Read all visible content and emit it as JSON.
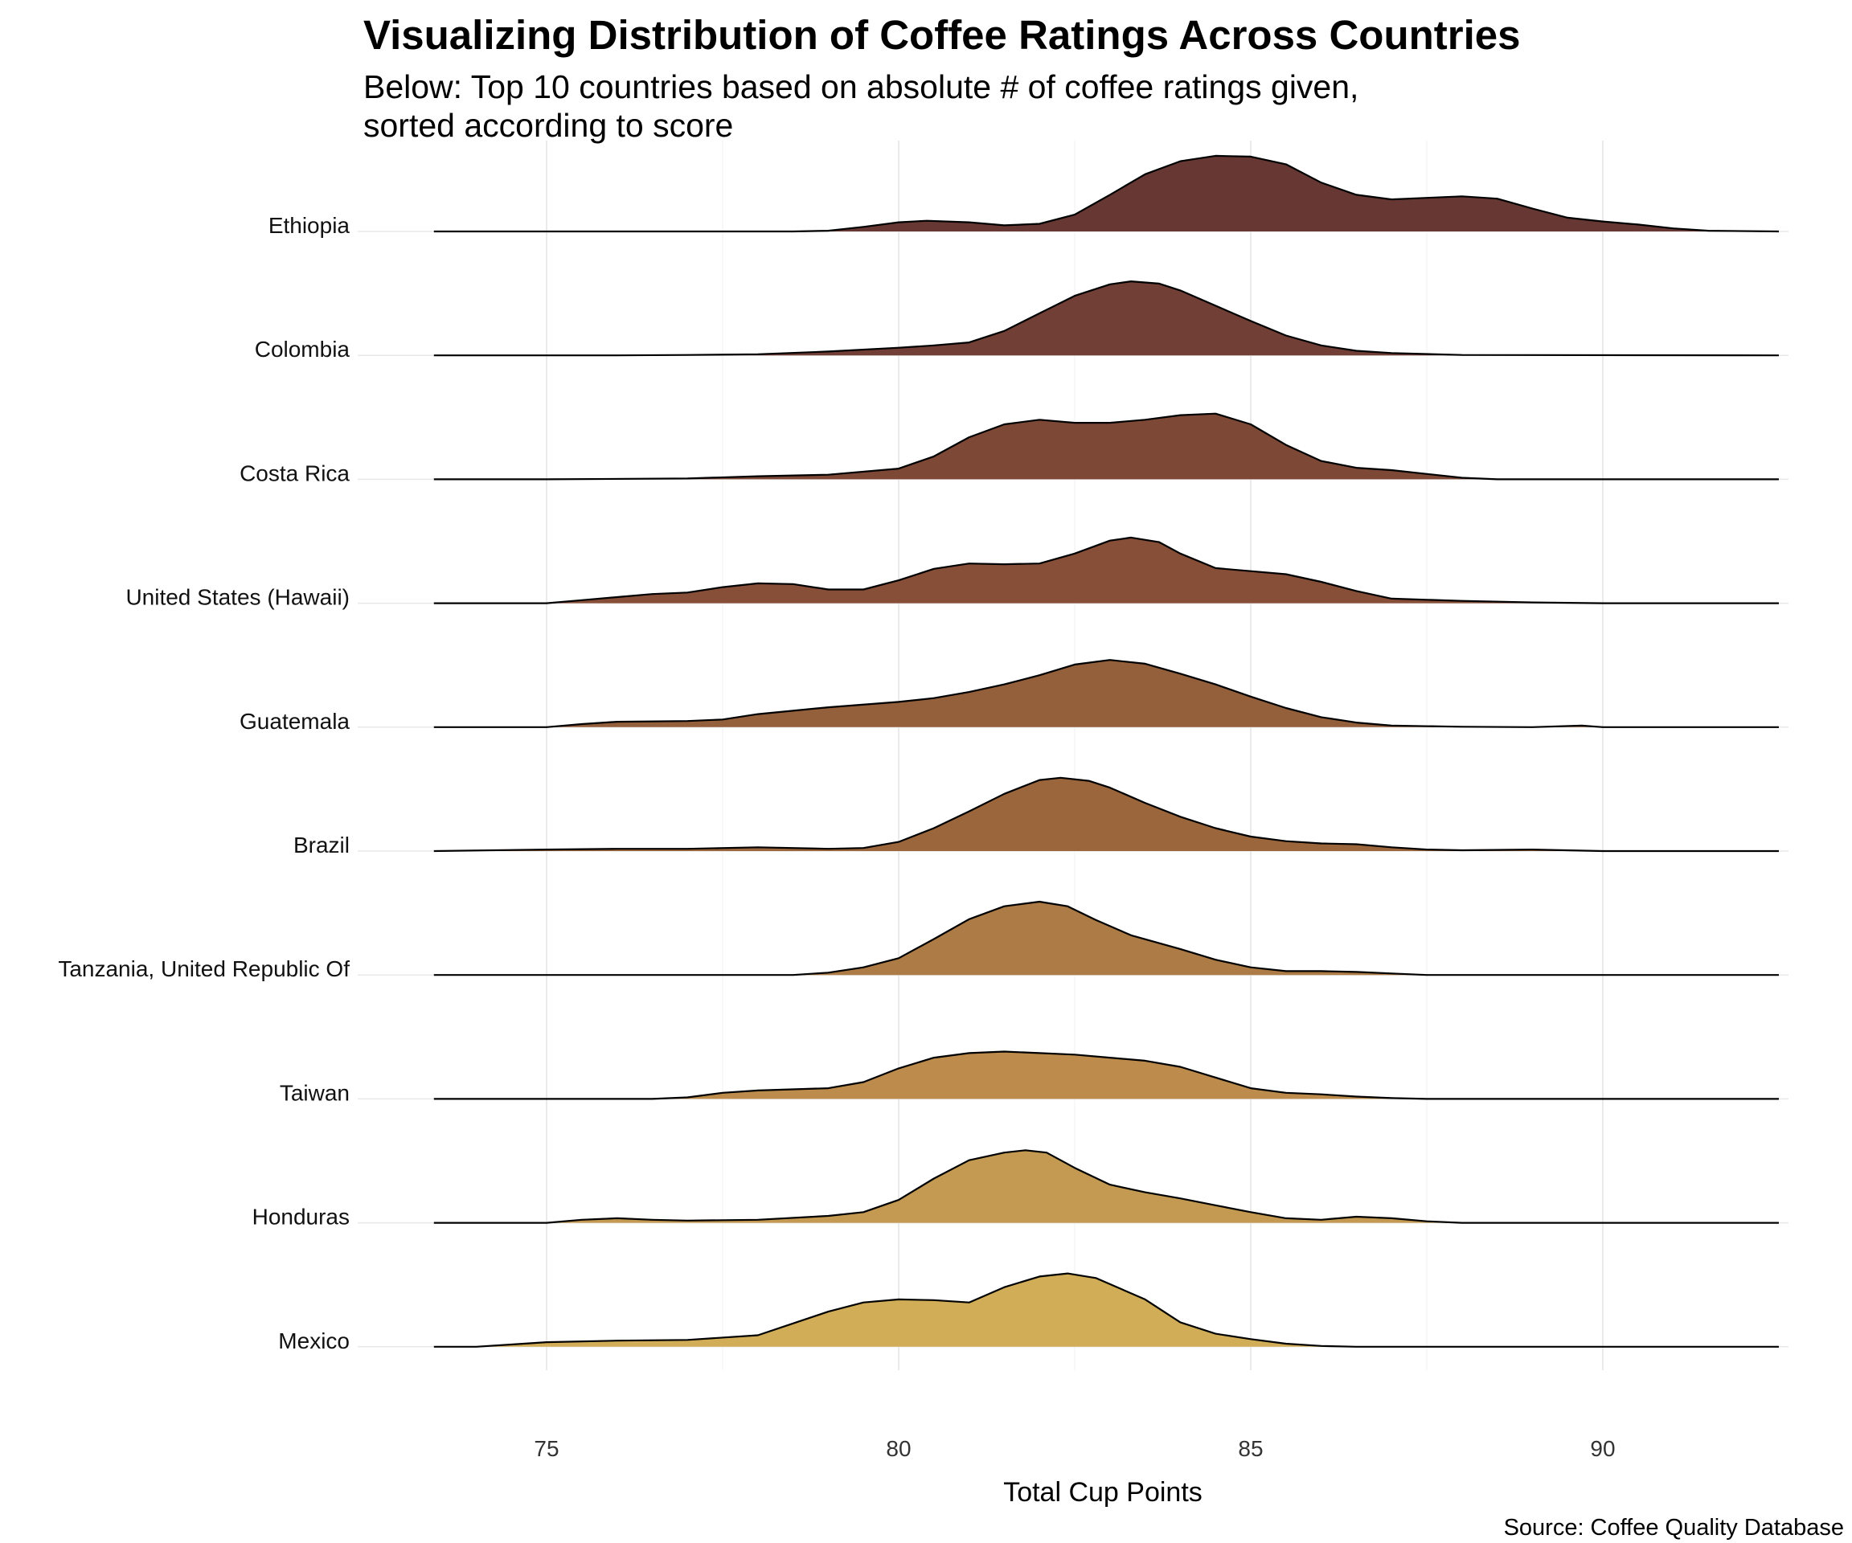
{
  "title": "Visualizing Distribution of Coffee Ratings Across Countries",
  "subtitle_line1": "Below: Top 10 countries based on absolute # of coffee ratings given,",
  "subtitle_line2": "sorted according to score",
  "source": "Source: Coffee Quality Database",
  "chart_data": {
    "type": "area",
    "subtype": "ridgeline density",
    "title": "Visualizing Distribution of Coffee Ratings Across Countries",
    "xlabel": "Total Cup Points",
    "ylabel": "",
    "xlim": [
      73.4,
      92.5
    ],
    "xticks": [
      75,
      80,
      85,
      90
    ],
    "grid": true,
    "legend": "none",
    "series": [
      {
        "name": "Ethiopia",
        "color": "#64342f",
        "points": [
          [
            73.4,
            0
          ],
          [
            78.5,
            0
          ],
          [
            79,
            0.01
          ],
          [
            79.5,
            0.06
          ],
          [
            80,
            0.12
          ],
          [
            80.4,
            0.14
          ],
          [
            81,
            0.12
          ],
          [
            81.5,
            0.08
          ],
          [
            82,
            0.1
          ],
          [
            82.5,
            0.22
          ],
          [
            83,
            0.48
          ],
          [
            83.5,
            0.75
          ],
          [
            84,
            0.92
          ],
          [
            84.5,
            0.99
          ],
          [
            85,
            0.98
          ],
          [
            85.5,
            0.88
          ],
          [
            86,
            0.64
          ],
          [
            86.5,
            0.48
          ],
          [
            87,
            0.42
          ],
          [
            87.5,
            0.44
          ],
          [
            88,
            0.46
          ],
          [
            88.5,
            0.43
          ],
          [
            89,
            0.3
          ],
          [
            89.5,
            0.18
          ],
          [
            90,
            0.13
          ],
          [
            90.5,
            0.09
          ],
          [
            91,
            0.04
          ],
          [
            91.5,
            0.01
          ],
          [
            92.5,
            0
          ]
        ]
      },
      {
        "name": "Colombia",
        "color": "#6e3b31",
        "points": [
          [
            73.4,
            0
          ],
          [
            76,
            0
          ],
          [
            77,
            0.005
          ],
          [
            78,
            0.015
          ],
          [
            79,
            0.05
          ],
          [
            80,
            0.1
          ],
          [
            80.5,
            0.13
          ],
          [
            81,
            0.17
          ],
          [
            81.5,
            0.32
          ],
          [
            82,
            0.55
          ],
          [
            82.5,
            0.78
          ],
          [
            83,
            0.93
          ],
          [
            83.3,
            0.97
          ],
          [
            83.7,
            0.94
          ],
          [
            84,
            0.85
          ],
          [
            84.5,
            0.65
          ],
          [
            85,
            0.45
          ],
          [
            85.5,
            0.26
          ],
          [
            86,
            0.13
          ],
          [
            86.5,
            0.06
          ],
          [
            87,
            0.03
          ],
          [
            88,
            0.005
          ],
          [
            92.5,
            0
          ]
        ]
      },
      {
        "name": "Costa Rica",
        "color": "#7a4432",
        "points": [
          [
            73.4,
            0
          ],
          [
            75,
            0
          ],
          [
            77,
            0.01
          ],
          [
            78,
            0.04
          ],
          [
            79,
            0.06
          ],
          [
            80,
            0.14
          ],
          [
            80.5,
            0.3
          ],
          [
            81,
            0.55
          ],
          [
            81.5,
            0.72
          ],
          [
            82,
            0.78
          ],
          [
            82.5,
            0.74
          ],
          [
            83,
            0.74
          ],
          [
            83.5,
            0.78
          ],
          [
            84,
            0.84
          ],
          [
            84.5,
            0.86
          ],
          [
            85,
            0.72
          ],
          [
            85.5,
            0.45
          ],
          [
            86,
            0.24
          ],
          [
            86.5,
            0.15
          ],
          [
            87,
            0.12
          ],
          [
            88,
            0.02
          ],
          [
            88.5,
            0
          ],
          [
            92.5,
            0
          ]
        ]
      },
      {
        "name": "United States (Hawaii)",
        "color": "#854a34",
        "points": [
          [
            73.4,
            0
          ],
          [
            75,
            0
          ],
          [
            75.5,
            0.04
          ],
          [
            76,
            0.08
          ],
          [
            76.5,
            0.12
          ],
          [
            77,
            0.14
          ],
          [
            77.5,
            0.21
          ],
          [
            78,
            0.26
          ],
          [
            78.5,
            0.25
          ],
          [
            79,
            0.18
          ],
          [
            79.5,
            0.18
          ],
          [
            80,
            0.3
          ],
          [
            80.5,
            0.45
          ],
          [
            81,
            0.52
          ],
          [
            81.5,
            0.51
          ],
          [
            82,
            0.52
          ],
          [
            82.5,
            0.65
          ],
          [
            83,
            0.82
          ],
          [
            83.3,
            0.86
          ],
          [
            83.7,
            0.8
          ],
          [
            84,
            0.65
          ],
          [
            84.5,
            0.46
          ],
          [
            85,
            0.42
          ],
          [
            85.5,
            0.38
          ],
          [
            86,
            0.28
          ],
          [
            86.5,
            0.16
          ],
          [
            87,
            0.06
          ],
          [
            88,
            0.03
          ],
          [
            89,
            0.01
          ],
          [
            90,
            0
          ],
          [
            92.5,
            0
          ]
        ]
      },
      {
        "name": "Guatemala",
        "color": "#925c37",
        "points": [
          [
            73.4,
            0
          ],
          [
            75,
            0
          ],
          [
            75.5,
            0.04
          ],
          [
            76,
            0.07
          ],
          [
            77,
            0.08
          ],
          [
            77.5,
            0.1
          ],
          [
            78,
            0.17
          ],
          [
            79,
            0.26
          ],
          [
            80,
            0.33
          ],
          [
            80.5,
            0.38
          ],
          [
            81,
            0.46
          ],
          [
            81.5,
            0.56
          ],
          [
            82,
            0.68
          ],
          [
            82.5,
            0.82
          ],
          [
            83,
            0.88
          ],
          [
            83.5,
            0.83
          ],
          [
            84,
            0.7
          ],
          [
            84.5,
            0.56
          ],
          [
            85,
            0.4
          ],
          [
            85.5,
            0.25
          ],
          [
            86,
            0.13
          ],
          [
            86.5,
            0.06
          ],
          [
            87,
            0.02
          ],
          [
            88,
            0.005
          ],
          [
            89,
            0
          ],
          [
            89.7,
            0.02
          ],
          [
            90,
            0
          ],
          [
            92.5,
            0
          ]
        ]
      },
      {
        "name": "Brazil",
        "color": "#9a6338",
        "points": [
          [
            73.4,
            0
          ],
          [
            75,
            0.02
          ],
          [
            76,
            0.03
          ],
          [
            77,
            0.03
          ],
          [
            78,
            0.05
          ],
          [
            79,
            0.03
          ],
          [
            79.5,
            0.04
          ],
          [
            80,
            0.12
          ],
          [
            80.5,
            0.3
          ],
          [
            81,
            0.52
          ],
          [
            81.5,
            0.75
          ],
          [
            82,
            0.93
          ],
          [
            82.3,
            0.96
          ],
          [
            82.7,
            0.92
          ],
          [
            83,
            0.83
          ],
          [
            83.5,
            0.63
          ],
          [
            84,
            0.45
          ],
          [
            84.5,
            0.3
          ],
          [
            85,
            0.19
          ],
          [
            85.5,
            0.13
          ],
          [
            86,
            0.1
          ],
          [
            86.5,
            0.09
          ],
          [
            87,
            0.05
          ],
          [
            87.5,
            0.02
          ],
          [
            88,
            0.01
          ],
          [
            89,
            0.02
          ],
          [
            90,
            0
          ],
          [
            92.5,
            0
          ]
        ]
      },
      {
        "name": "Tanzania, United Republic Of",
        "color": "#ab7841",
        "points": [
          [
            73.4,
            0
          ],
          [
            78.5,
            0
          ],
          [
            79,
            0.03
          ],
          [
            79.5,
            0.1
          ],
          [
            80,
            0.22
          ],
          [
            80.5,
            0.47
          ],
          [
            81,
            0.73
          ],
          [
            81.5,
            0.9
          ],
          [
            82,
            0.96
          ],
          [
            82.4,
            0.9
          ],
          [
            82.8,
            0.72
          ],
          [
            83.3,
            0.52
          ],
          [
            84,
            0.34
          ],
          [
            84.5,
            0.2
          ],
          [
            85,
            0.1
          ],
          [
            85.5,
            0.05
          ],
          [
            86,
            0.05
          ],
          [
            86.5,
            0.04
          ],
          [
            87,
            0.02
          ],
          [
            87.5,
            0
          ],
          [
            92.5,
            0
          ]
        ]
      },
      {
        "name": "Taiwan",
        "color": "#bc8a48",
        "points": [
          [
            73.4,
            0
          ],
          [
            76.5,
            0
          ],
          [
            77,
            0.02
          ],
          [
            77.5,
            0.08
          ],
          [
            78,
            0.11
          ],
          [
            79,
            0.14
          ],
          [
            79.5,
            0.22
          ],
          [
            80,
            0.4
          ],
          [
            80.5,
            0.54
          ],
          [
            81,
            0.6
          ],
          [
            81.5,
            0.62
          ],
          [
            82,
            0.6
          ],
          [
            82.5,
            0.58
          ],
          [
            83,
            0.54
          ],
          [
            83.5,
            0.5
          ],
          [
            84,
            0.42
          ],
          [
            84.5,
            0.28
          ],
          [
            85,
            0.14
          ],
          [
            85.5,
            0.08
          ],
          [
            86,
            0.06
          ],
          [
            86.5,
            0.03
          ],
          [
            87,
            0.01
          ],
          [
            87.5,
            0
          ],
          [
            92.5,
            0
          ]
        ]
      },
      {
        "name": "Honduras",
        "color": "#c3984f",
        "points": [
          [
            73.4,
            0
          ],
          [
            75,
            0
          ],
          [
            75.5,
            0.04
          ],
          [
            76,
            0.06
          ],
          [
            76.5,
            0.04
          ],
          [
            77,
            0.03
          ],
          [
            78,
            0.04
          ],
          [
            79,
            0.09
          ],
          [
            79.5,
            0.14
          ],
          [
            80,
            0.3
          ],
          [
            80.5,
            0.58
          ],
          [
            81,
            0.82
          ],
          [
            81.5,
            0.92
          ],
          [
            81.8,
            0.95
          ],
          [
            82.1,
            0.92
          ],
          [
            82.5,
            0.72
          ],
          [
            83,
            0.5
          ],
          [
            83.5,
            0.4
          ],
          [
            84,
            0.32
          ],
          [
            84.5,
            0.23
          ],
          [
            85,
            0.14
          ],
          [
            85.5,
            0.06
          ],
          [
            86,
            0.04
          ],
          [
            86.5,
            0.08
          ],
          [
            87,
            0.06
          ],
          [
            87.5,
            0.02
          ],
          [
            88,
            0
          ],
          [
            92.5,
            0
          ]
        ]
      },
      {
        "name": "Mexico",
        "color": "#d1ab55",
        "points": [
          [
            73.4,
            0
          ],
          [
            74,
            0
          ],
          [
            74.5,
            0.03
          ],
          [
            75,
            0.06
          ],
          [
            76,
            0.08
          ],
          [
            77,
            0.09
          ],
          [
            78,
            0.15
          ],
          [
            79,
            0.46
          ],
          [
            79.5,
            0.58
          ],
          [
            80,
            0.62
          ],
          [
            80.5,
            0.61
          ],
          [
            81,
            0.58
          ],
          [
            81.5,
            0.78
          ],
          [
            82,
            0.92
          ],
          [
            82.4,
            0.96
          ],
          [
            82.8,
            0.9
          ],
          [
            83.5,
            0.62
          ],
          [
            84,
            0.32
          ],
          [
            84.5,
            0.17
          ],
          [
            85,
            0.1
          ],
          [
            85.5,
            0.04
          ],
          [
            86,
            0.01
          ],
          [
            86.5,
            0
          ],
          [
            92.5,
            0
          ]
        ]
      }
    ]
  }
}
